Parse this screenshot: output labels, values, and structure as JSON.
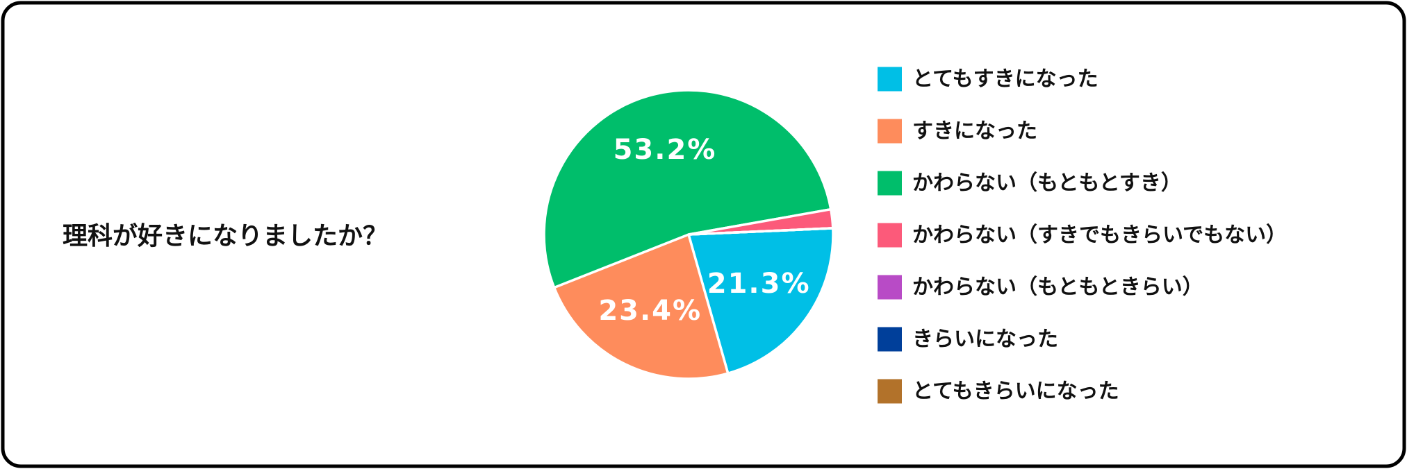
{
  "chart_data": {
    "type": "pie",
    "title": "理科が好きになりましたか？",
    "categories": [
      "とてもすきになった",
      "すきになった",
      "かわらない（もともとすき）",
      "かわらない（すきでもきらいでもない）",
      "かわらない（もともときらい）",
      "きらいになった",
      "とてもきらいになった"
    ],
    "values": [
      21.3,
      23.4,
      53.2,
      2.1,
      0,
      0,
      0
    ],
    "value_labels": [
      "21.3%",
      "23.4%",
      "53.2%",
      null,
      null,
      null,
      null
    ],
    "colors": [
      "#00bfe6",
      "#fe8c5c",
      "#00be6b",
      "#fc5a7a",
      "#b84bc6",
      "#003f9a",
      "#b2722a"
    ],
    "legend": "right"
  }
}
